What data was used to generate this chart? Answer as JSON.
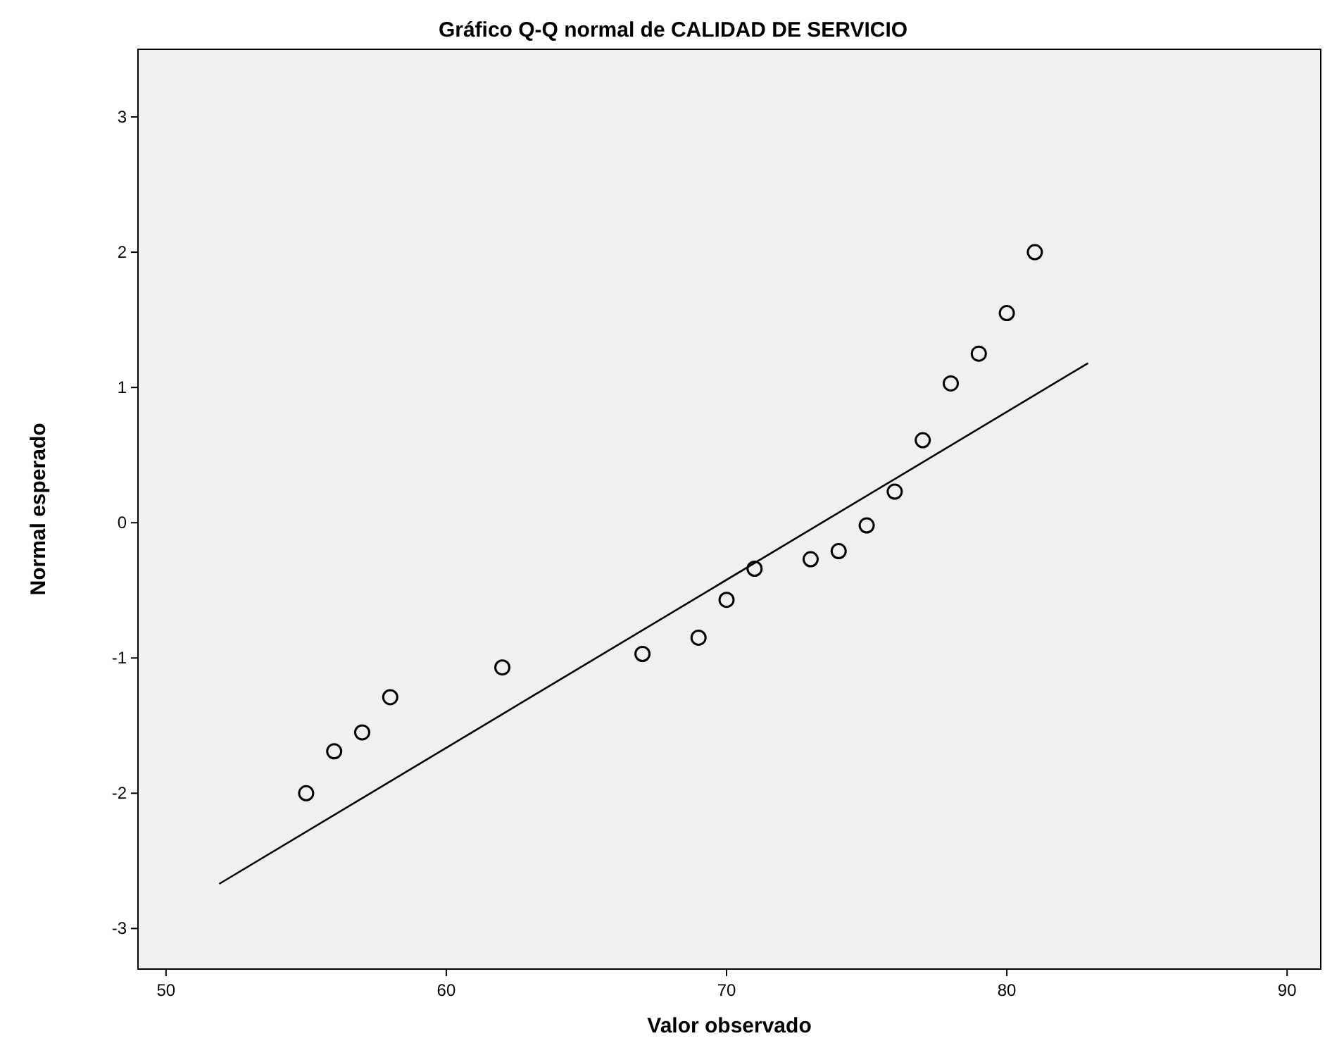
{
  "chart_data": {
    "type": "scatter",
    "title": "Gráfico Q-Q normal de CALIDAD DE SERVICIO",
    "xlabel": "Valor observado",
    "ylabel": "Normal esperado",
    "xlim": [
      49,
      91.2
    ],
    "ylim": [
      -3.3,
      3.5
    ],
    "xticks": [
      50,
      60,
      70,
      80,
      90
    ],
    "yticks": [
      -3,
      -2,
      -1,
      0,
      1,
      2,
      3
    ],
    "grid": false,
    "marker": "circle",
    "series": [
      {
        "color": "#000000",
        "x": [
          55,
          56,
          57,
          58,
          62,
          67,
          69,
          70,
          71,
          73,
          74,
          75,
          76,
          77,
          78,
          79,
          80,
          81
        ],
        "values": [
          -2.0,
          -1.69,
          -1.55,
          -1.29,
          -1.07,
          -0.97,
          -0.85,
          -0.57,
          -0.34,
          -0.27,
          -0.21,
          -0.02,
          0.23,
          0.61,
          1.03,
          1.25,
          1.55,
          2.0
        ]
      },
      {
        "type": "line",
        "color": "#000000",
        "marker": "none",
        "line_style": "solid",
        "x": [
          51.9,
          82.9
        ],
        "values": [
          -2.67,
          1.18
        ]
      }
    ]
  }
}
